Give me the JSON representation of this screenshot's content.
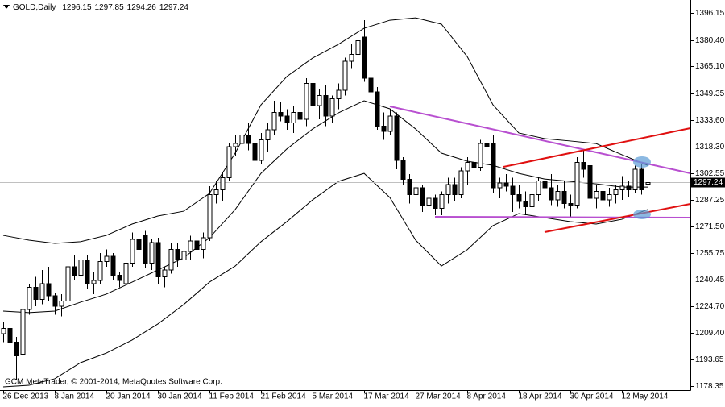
{
  "chart_data": {
    "type": "candlestick",
    "title": "GOLD,Daily",
    "footer": "GCM MetaTrader, © 2001-2014, MetaQuotes Software Corp.",
    "categories": [
      "26 Dec 2013",
      null,
      null,
      null,
      null,
      null,
      null,
      null,
      "8 Jan 2014",
      null,
      null,
      null,
      null,
      null,
      null,
      null,
      "20 Jan 2014",
      null,
      null,
      null,
      null,
      null,
      null,
      null,
      "30 Jan 2014",
      null,
      null,
      null,
      null,
      null,
      null,
      null,
      "11 Feb 2014",
      null,
      null,
      null,
      null,
      null,
      null,
      null,
      "21 Feb 2014",
      null,
      null,
      null,
      null,
      null,
      null,
      null,
      "5 Mar 2014",
      null,
      null,
      null,
      null,
      null,
      null,
      null,
      "17 Mar 2014",
      null,
      null,
      null,
      null,
      null,
      null,
      null,
      "27 Mar 2014",
      null,
      null,
      null,
      null,
      null,
      null,
      null,
      "8 Apr 2014",
      null,
      null,
      null,
      null,
      null,
      null,
      null,
      "18 Apr 2014",
      null,
      null,
      null,
      null,
      null,
      null,
      null,
      "30 Apr 2014",
      null,
      null,
      null,
      null,
      null,
      null,
      null,
      "12 May 2014",
      null,
      null,
      null,
      null
    ],
    "open": [
      1209,
      1212,
      1204,
      1197,
      1223,
      1236,
      1229,
      1238,
      1231,
      1225,
      1228,
      1248,
      1243,
      1252,
      1238,
      1240,
      1251,
      1254,
      1243,
      1238,
      1250,
      1264,
      1266,
      1250,
      1262,
      1242,
      1246,
      1258,
      1252,
      1257,
      1263,
      1258,
      1265,
      1290,
      1293,
      1300,
      1318,
      1320,
      1325,
      1320,
      1310,
      1322,
      1328,
      1338,
      1336,
      1332,
      1338,
      1334,
      1355,
      1342,
      1348,
      1336,
      1346,
      1351,
      1368,
      1372,
      1382,
      1358,
      1350,
      1330,
      1327,
      1336,
      1310,
      1299,
      1290,
      1294,
      1284,
      1288,
      1282,
      1290,
      1296,
      1290,
      1304,
      1309,
      1306,
      1320,
      1320,
      1294,
      1297,
      1295,
      1290,
      1286,
      1283,
      1290,
      1298,
      1294,
      1287,
      1292,
      1285,
      1284,
      1309,
      1307,
      1288,
      1292,
      1287,
      1290,
      1293,
      1295,
      1293,
      1305,
      1296.15
    ],
    "high": [
      1216,
      1215,
      1207,
      1226,
      1238,
      1242,
      1246,
      1248,
      1233,
      1232,
      1252,
      1255,
      1256,
      1255,
      1245,
      1256,
      1258,
      1256,
      1245,
      1252,
      1268,
      1272,
      1269,
      1264,
      1265,
      1248,
      1262,
      1262,
      1260,
      1266,
      1270,
      1268,
      1295,
      1298,
      1303,
      1320,
      1325,
      1330,
      1332,
      1323,
      1326,
      1332,
      1345,
      1344,
      1340,
      1342,
      1345,
      1358,
      1358,
      1352,
      1354,
      1348,
      1355,
      1370,
      1378,
      1385,
      1392,
      1362,
      1353,
      1338,
      1340,
      1338,
      1312,
      1302,
      1300,
      1296,
      1292,
      1290,
      1292,
      1300,
      1300,
      1306,
      1312,
      1314,
      1322,
      1331,
      1325,
      1300,
      1302,
      1300,
      1296,
      1292,
      1294,
      1300,
      1304,
      1302,
      1296,
      1298,
      1290,
      1312,
      1316,
      1311,
      1296,
      1296,
      1294,
      1296,
      1301,
      1298,
      1307,
      1308,
      1297.85
    ],
    "low": [
      1204,
      1198,
      1182,
      1194,
      1220,
      1225,
      1226,
      1228,
      1220,
      1219,
      1226,
      1240,
      1240,
      1235,
      1232,
      1238,
      1248,
      1240,
      1236,
      1232,
      1248,
      1255,
      1247,
      1246,
      1238,
      1236,
      1244,
      1248,
      1250,
      1252,
      1255,
      1253,
      1263,
      1285,
      1286,
      1298,
      1313,
      1315,
      1316,
      1305,
      1308,
      1315,
      1325,
      1333,
      1328,
      1326,
      1330,
      1330,
      1338,
      1334,
      1330,
      1332,
      1340,
      1348,
      1364,
      1368,
      1356,
      1346,
      1328,
      1322,
      1325,
      1305,
      1296,
      1285,
      1282,
      1280,
      1279,
      1278,
      1278,
      1285,
      1286,
      1288,
      1296,
      1303,
      1304,
      1316,
      1291,
      1288,
      1292,
      1280,
      1282,
      1278,
      1278,
      1286,
      1290,
      1284,
      1283,
      1282,
      1277,
      1282,
      1300,
      1286,
      1282,
      1283,
      1283,
      1285,
      1287,
      1289,
      1291,
      1290,
      1294.26
    ],
    "close": [
      1212,
      1204,
      1196,
      1223,
      1236,
      1229,
      1238,
      1231,
      1225,
      1228,
      1248,
      1243,
      1252,
      1238,
      1240,
      1251,
      1254,
      1243,
      1240,
      1250,
      1264,
      1258,
      1250,
      1262,
      1242,
      1246,
      1258,
      1252,
      1257,
      1263,
      1258,
      1265,
      1290,
      1293,
      1300,
      1318,
      1320,
      1325,
      1320,
      1310,
      1322,
      1328,
      1338,
      1336,
      1332,
      1338,
      1334,
      1355,
      1342,
      1348,
      1336,
      1346,
      1351,
      1368,
      1372,
      1380,
      1358,
      1350,
      1330,
      1327,
      1336,
      1310,
      1299,
      1290,
      1294,
      1284,
      1288,
      1282,
      1290,
      1296,
      1290,
      1304,
      1309,
      1306,
      1320,
      1318,
      1294,
      1297,
      1295,
      1290,
      1286,
      1283,
      1290,
      1298,
      1294,
      1287,
      1292,
      1285,
      1284,
      1309,
      1305,
      1288,
      1292,
      1287,
      1290,
      1293,
      1295,
      1293,
      1305,
      1293,
      1297.24
    ],
    "bands": [
      {
        "color": "#000000",
        "x": [
          0,
          4,
          8,
          12,
          16,
          20,
          24,
          28,
          32,
          36,
          40,
          44,
          48,
          52,
          56,
          60,
          64,
          68,
          72,
          76,
          80,
          84,
          88,
          92,
          96,
          100
        ],
        "values": [
          1266.3,
          1263.5,
          1261.6,
          1262.6,
          1266.3,
          1272.9,
          1277.6,
          1280.4,
          1290.8,
          1314.3,
          1342.5,
          1359.0,
          1369.8,
          1377.8,
          1387.2,
          1391.9,
          1393.3,
          1389.6,
          1370.7,
          1342.5,
          1326.1,
          1322.8,
          1321.4,
          1319.9,
          1313.4,
          1307.2
        ]
      },
      {
        "color": "#000000",
        "x": [
          0,
          4,
          8,
          12,
          16,
          20,
          24,
          28,
          32,
          36,
          40,
          44,
          48,
          52,
          56,
          60,
          64,
          68,
          72,
          76,
          80,
          84,
          88,
          92,
          96,
          100
        ],
        "values": [
          1222.1,
          1221.2,
          1222.1,
          1227.3,
          1232.0,
          1239.0,
          1246.1,
          1253.2,
          1264.9,
          1281.4,
          1302.5,
          1316.7,
          1328.4,
          1337.8,
          1344.9,
          1340.2,
          1328.4,
          1314.3,
          1309.6,
          1307.2,
          1302.5,
          1299.2,
          1297.8,
          1296.4,
          1294.5,
          1294.5
        ]
      },
      {
        "color": "#000000",
        "x": [
          0,
          4,
          8,
          12,
          16,
          20,
          24,
          28,
          32,
          36,
          40,
          44,
          48,
          52,
          56,
          60,
          64,
          68,
          72,
          76,
          80,
          84,
          88,
          92,
          96,
          100
        ],
        "values": [
          1177.9,
          1178.8,
          1182.6,
          1192.0,
          1197.6,
          1205.2,
          1214.6,
          1225.9,
          1239.0,
          1248.4,
          1262.6,
          1274.3,
          1287.0,
          1297.8,
          1302.5,
          1288.4,
          1263.5,
          1248.4,
          1257.9,
          1272.0,
          1279.0,
          1276.7,
          1274.3,
          1272.9,
          1275.7,
          1281.4
        ]
      }
    ],
    "up_color": "#ffffff",
    "down_color": "#000000",
    "ylim": [
      1176.0,
      1403.7
    ],
    "yticks": [
      1396.15,
      {
        "value": 1380.4,
        "label": "1380.40"
      },
      {
        "value": 1365.1,
        "label": "1365.10"
      },
      1349.35,
      {
        "value": 1333.6,
        "label": "1333.60"
      },
      {
        "value": 1318.3,
        "label": "1318.30"
      },
      1302.55,
      1287.25,
      {
        "value": 1271.5,
        "label": "1271.50"
      },
      1255.75,
      1240.45,
      {
        "value": 1224.7,
        "label": "1224.70"
      },
      {
        "value": 1209.4,
        "label": "1209.40"
      },
      1193.65,
      1178.35
    ],
    "grid": false
  }
}
